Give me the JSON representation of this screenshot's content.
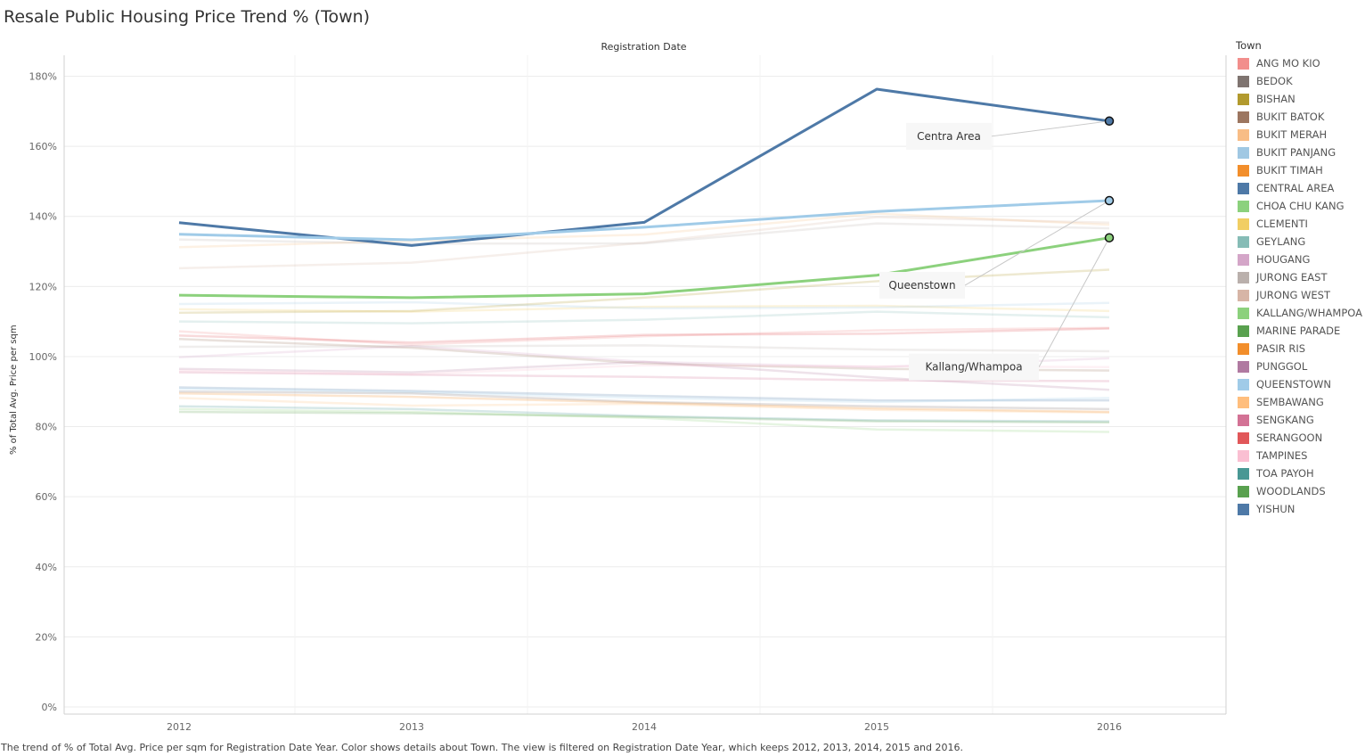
{
  "title": "Resale Public Housing Price Trend % (Town)",
  "column_header": "Registration Date",
  "ylabel": "% of Total Avg. Price per sqm",
  "caption": "The trend of % of Total Avg. Price per sqm for Registration Date Year.  Color shows details about Town. The view is filtered on Registration Date Year, which keeps 2012, 2013, 2014, 2015 and 2016.",
  "legend": {
    "title": "Town",
    "items": [
      {
        "label": "ANG MO KIO",
        "color": "#f28e8c"
      },
      {
        "label": "BEDOK",
        "color": "#7f7470"
      },
      {
        "label": "BISHAN",
        "color": "#b29a2e"
      },
      {
        "label": "BUKIT BATOK",
        "color": "#9c7660"
      },
      {
        "label": "BUKIT MERAH",
        "color": "#f8bd86"
      },
      {
        "label": "BUKIT PANJANG",
        "color": "#a0c8e3"
      },
      {
        "label": "BUKIT TIMAH",
        "color": "#f28e2b"
      },
      {
        "label": "CENTRAL AREA",
        "color": "#4e79a7"
      },
      {
        "label": "CHOA CHU KANG",
        "color": "#8cd17d"
      },
      {
        "label": "CLEMENTI",
        "color": "#f1ce63"
      },
      {
        "label": "GEYLANG",
        "color": "#86bcb6"
      },
      {
        "label": "HOUGANG",
        "color": "#d4a6c8"
      },
      {
        "label": "JURONG EAST",
        "color": "#bab0ac"
      },
      {
        "label": "JURONG WEST",
        "color": "#d7b5a6"
      },
      {
        "label": "KALLANG/WHAMPOA",
        "color": "#8cd17d"
      },
      {
        "label": "MARINE PARADE",
        "color": "#59a14f"
      },
      {
        "label": "PASIR RIS",
        "color": "#f28e2b"
      },
      {
        "label": "PUNGGOL",
        "color": "#b07aa1"
      },
      {
        "label": "QUEENSTOWN",
        "color": "#a0cbe8"
      },
      {
        "label": "SEMBAWANG",
        "color": "#ffbe7d"
      },
      {
        "label": "SENGKANG",
        "color": "#d37295"
      },
      {
        "label": "SERANGOON",
        "color": "#e15759"
      },
      {
        "label": "TAMPINES",
        "color": "#fabfd2"
      },
      {
        "label": "TOA PAYOH",
        "color": "#499894"
      },
      {
        "label": "WOODLANDS",
        "color": "#59a14f"
      },
      {
        "label": "YISHUN",
        "color": "#4e79a7"
      }
    ]
  },
  "chart_data": {
    "type": "line",
    "title": "Resale Public Housing Price Trend % (Town)",
    "xlabel": "Registration Date",
    "ylabel": "% of Total Avg. Price per sqm",
    "x": [
      "2012",
      "2013",
      "2014",
      "2015",
      "2016"
    ],
    "ylim": [
      0,
      182
    ],
    "yticks": [
      0,
      20,
      40,
      60,
      80,
      100,
      120,
      140,
      160,
      180
    ],
    "ytick_labels": [
      "0%",
      "20%",
      "40%",
      "60%",
      "80%",
      "100%",
      "120%",
      "140%",
      "160%",
      "180%"
    ],
    "grid": true,
    "legend_position": "right",
    "highlighted": [
      {
        "name": "CENTRAL AREA",
        "color": "#4e79a7",
        "values": [
          138.2,
          131.7,
          138.3,
          176.3,
          167.2
        ],
        "annotation": "Centra Area"
      },
      {
        "name": "QUEENSTOWN",
        "color": "#a0cbe8",
        "values": [
          134.9,
          133.3,
          136.9,
          141.4,
          144.5
        ],
        "annotation": "Queenstown"
      },
      {
        "name": "KALLANG/WHAMPOA",
        "color": "#8cd17d",
        "values": [
          117.5,
          116.8,
          117.9,
          123.2,
          133.9
        ],
        "annotation": "Kallang/Whampoa"
      }
    ],
    "background_series": [
      {
        "color": "#f28e8c",
        "values": [
          107.2,
          103.4,
          105.8,
          107.5,
          108.2
        ]
      },
      {
        "color": "#e15759",
        "values": [
          106.0,
          104.0,
          106.2,
          106.5,
          108.0
        ]
      },
      {
        "color": "#9c7660",
        "values": [
          105.0,
          102.5,
          98.0,
          96.5,
          96.0
        ]
      },
      {
        "color": "#d4a6c8",
        "values": [
          99.8,
          103.0,
          98.5,
          97.0,
          99.5
        ]
      },
      {
        "color": "#bab0ac",
        "values": [
          102.8,
          102.9,
          103.2,
          102.0,
          101.5
        ]
      },
      {
        "color": "#b07aa1",
        "values": [
          96.5,
          95.5,
          98.5,
          94.0,
          90.5
        ]
      },
      {
        "color": "#fabfd2",
        "values": [
          96.0,
          95.0,
          97.5,
          97.2,
          97.0
        ]
      },
      {
        "color": "#d37295",
        "values": [
          95.5,
          94.8,
          94.2,
          93.2,
          93.0
        ]
      },
      {
        "color": "#f1ce63",
        "values": [
          113.5,
          112.8,
          114.2,
          114.5,
          113.0
        ]
      },
      {
        "color": "#86bcb6",
        "values": [
          110.0,
          109.5,
          110.5,
          112.8,
          111.2
        ]
      },
      {
        "color": "#a0c8e3",
        "values": [
          115.0,
          115.5,
          113.8,
          114.0,
          115.3
        ]
      },
      {
        "color": "#b29a2e",
        "values": [
          112.5,
          113.0,
          116.8,
          121.5,
          124.8
        ]
      },
      {
        "color": "#d7b5a6",
        "values": [
          125.2,
          126.8,
          132.5,
          139.8,
          138.2
        ]
      },
      {
        "color": "#f8bd86",
        "values": [
          131.2,
          133.0,
          134.8,
          140.8,
          137.6
        ]
      },
      {
        "color": "#bab0ac",
        "values": [
          133.4,
          132.2,
          132.3,
          138.0,
          136.6
        ]
      },
      {
        "color": "#4e79a7",
        "values": [
          91.2,
          90.2,
          88.8,
          87.5,
          87.5
        ]
      },
      {
        "color": "#a0cbe8",
        "values": [
          90.8,
          89.8,
          88.2,
          87.0,
          88.2
        ]
      },
      {
        "color": "#7f7470",
        "values": [
          90.0,
          89.5,
          87.0,
          85.8,
          85.0
        ]
      },
      {
        "color": "#f28e2b",
        "values": [
          89.5,
          88.5,
          86.8,
          85.2,
          84.2
        ]
      },
      {
        "color": "#ffbe7d",
        "values": [
          88.2,
          86.0,
          86.5,
          84.8,
          84.0
        ]
      },
      {
        "color": "#499894",
        "values": [
          85.8,
          85.0,
          83.0,
          81.8,
          81.5
        ]
      },
      {
        "color": "#8cd17d",
        "values": [
          85.0,
          84.2,
          82.5,
          79.2,
          78.5
        ]
      },
      {
        "color": "#59a14f",
        "values": [
          84.2,
          83.8,
          82.8,
          81.5,
          81.2
        ]
      }
    ]
  }
}
